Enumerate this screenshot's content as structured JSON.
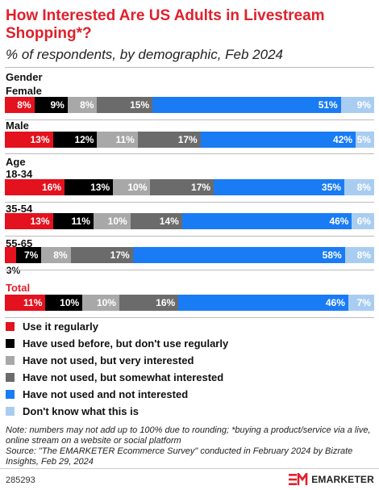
{
  "title": "How Interested Are US Adults in Livestream Shopping*?",
  "subtitle": "% of respondents, by demographic, Feb 2024",
  "colors": {
    "use_regularly": "#e4111e",
    "used_before": "#000000",
    "very_interested": "#a8a8a8",
    "somewhat_interested": "#6b6b6b",
    "not_interested": "#1a7cf5",
    "dont_know": "#a9cdf0"
  },
  "chart_data": {
    "type": "bar",
    "stacked": true,
    "orientation": "horizontal",
    "title": "How Interested Are US Adults in Livestream Shopping*?",
    "subtitle": "% of respondents, by demographic, Feb 2024",
    "legend_position": "bottom",
    "groups": [
      {
        "label": "Gender",
        "rows": [
          {
            "label": "Female",
            "values": [
              8,
              9,
              8,
              15,
              51,
              9
            ]
          },
          {
            "label": "Male",
            "values": [
              13,
              12,
              11,
              17,
              42,
              5
            ]
          }
        ]
      },
      {
        "label": "Age",
        "rows": [
          {
            "label": "18-34",
            "values": [
              16,
              13,
              10,
              17,
              35,
              8
            ]
          },
          {
            "label": "35-54",
            "values": [
              13,
              11,
              10,
              14,
              46,
              6
            ]
          },
          {
            "label": "55-65",
            "values": [
              3,
              7,
              8,
              17,
              58,
              8
            ]
          }
        ]
      },
      {
        "label": "",
        "rows": [
          {
            "label": "Total",
            "values": [
              11,
              10,
              10,
              16,
              46,
              7
            ]
          }
        ]
      }
    ],
    "series": [
      {
        "name": "Use it regularly"
      },
      {
        "name": "Have used before, but don't use regularly"
      },
      {
        "name": "Have not used, but very interested"
      },
      {
        "name": "Have not used, but somewhat interested"
      },
      {
        "name": "Have not used and not interested"
      },
      {
        "name": "Don't know what this is"
      }
    ],
    "value_suffix": "%"
  },
  "note": "Note: numbers may not add up to 100% due to rounding; *buying a product/service via a live, online stream on a website or social platform",
  "source": "Source: \"The EMARKETER Ecommerce Survey\" conducted in February 2024 by Bizrate Insights, Feb 29, 2024",
  "chart_id": "285293",
  "brand": "EMARKETER"
}
